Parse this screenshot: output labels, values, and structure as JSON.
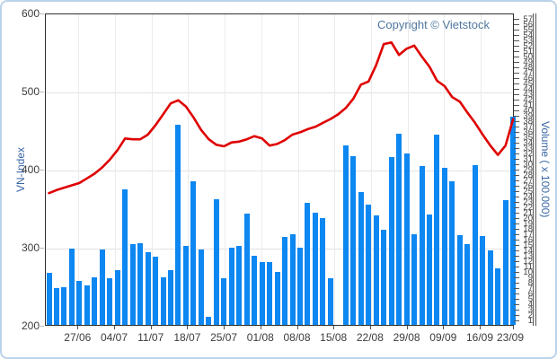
{
  "widget": {
    "copyright": "Copyright © Vietstock"
  },
  "left_axis": {
    "title": "VN-Index",
    "ticks": [
      "600",
      "500",
      "400",
      "300",
      "200"
    ]
  },
  "right_axis": {
    "title": "Volume ( x 100.000)"
  },
  "chart_data": {
    "type": "combo",
    "title": "",
    "x_tick_labels": [
      "27/06",
      "04/07",
      "11/07",
      "18/07",
      "25/07",
      "01/08",
      "08/08",
      "15/08",
      "22/08",
      "29/08",
      "09/09",
      "16/09",
      "23/09"
    ],
    "left_ylim": [
      200,
      600
    ],
    "left_tick_step": 100,
    "right_ylim": [
      0,
      58
    ],
    "right_tick_step": 1,
    "grid": true,
    "legend": "none",
    "series": [
      {
        "name": "VN-Index",
        "type": "line",
        "axis": "left",
        "color": "#df0000",
        "values": [
          371,
          375,
          378,
          381,
          384,
          390,
          396,
          404,
          414,
          426,
          441,
          440,
          440,
          446,
          458,
          472,
          486,
          490,
          482,
          468,
          452,
          440,
          433,
          431,
          436,
          437,
          440,
          444,
          441,
          432,
          434,
          439,
          446,
          449,
          453,
          456,
          461,
          466,
          472,
          480,
          492,
          510,
          514,
          535,
          562,
          564,
          548,
          556,
          560,
          546,
          533,
          515,
          508,
          494,
          488,
          474,
          461,
          446,
          432,
          420,
          432,
          466
        ]
      },
      {
        "name": "Volume",
        "type": "bar",
        "axis": "right",
        "color": "#0d87f1",
        "values": [
          9.7,
          6.8,
          7.0,
          14.2,
          8.2,
          7.3,
          8.8,
          14.0,
          8.7,
          10.2,
          25.2,
          15.0,
          15.2,
          13.5,
          12.7,
          8.8,
          10.2,
          37.2,
          14.7,
          26.7,
          14.0,
          1.5,
          23.4,
          8.7,
          14.3,
          14.7,
          20.7,
          12.8,
          11.6,
          11.6,
          9.9,
          16.3,
          16.8,
          14.4,
          22.6,
          20.9,
          19.9,
          8.7,
          0,
          33.4,
          31.3,
          24.7,
          22.3,
          20.3,
          17.6,
          31.2,
          35.5,
          31.8,
          16.8,
          29.5,
          20.5,
          35.4,
          29.1,
          26.6,
          16.7,
          15.0,
          29.7,
          16.5,
          13.8,
          10.5,
          23.2,
          38.7
        ]
      }
    ]
  },
  "colors": {
    "bar": "#0d87f1",
    "line": "#df0000",
    "widget_border": "#bcd2e8",
    "plot_border": "#2e2e2e",
    "grid_h": "#e2e2e2",
    "grid_v": "#ebebeb",
    "axis_text": "#3c3c3c",
    "axis_title_text": "#3a67a5",
    "copyright_text": "#50779f"
  }
}
